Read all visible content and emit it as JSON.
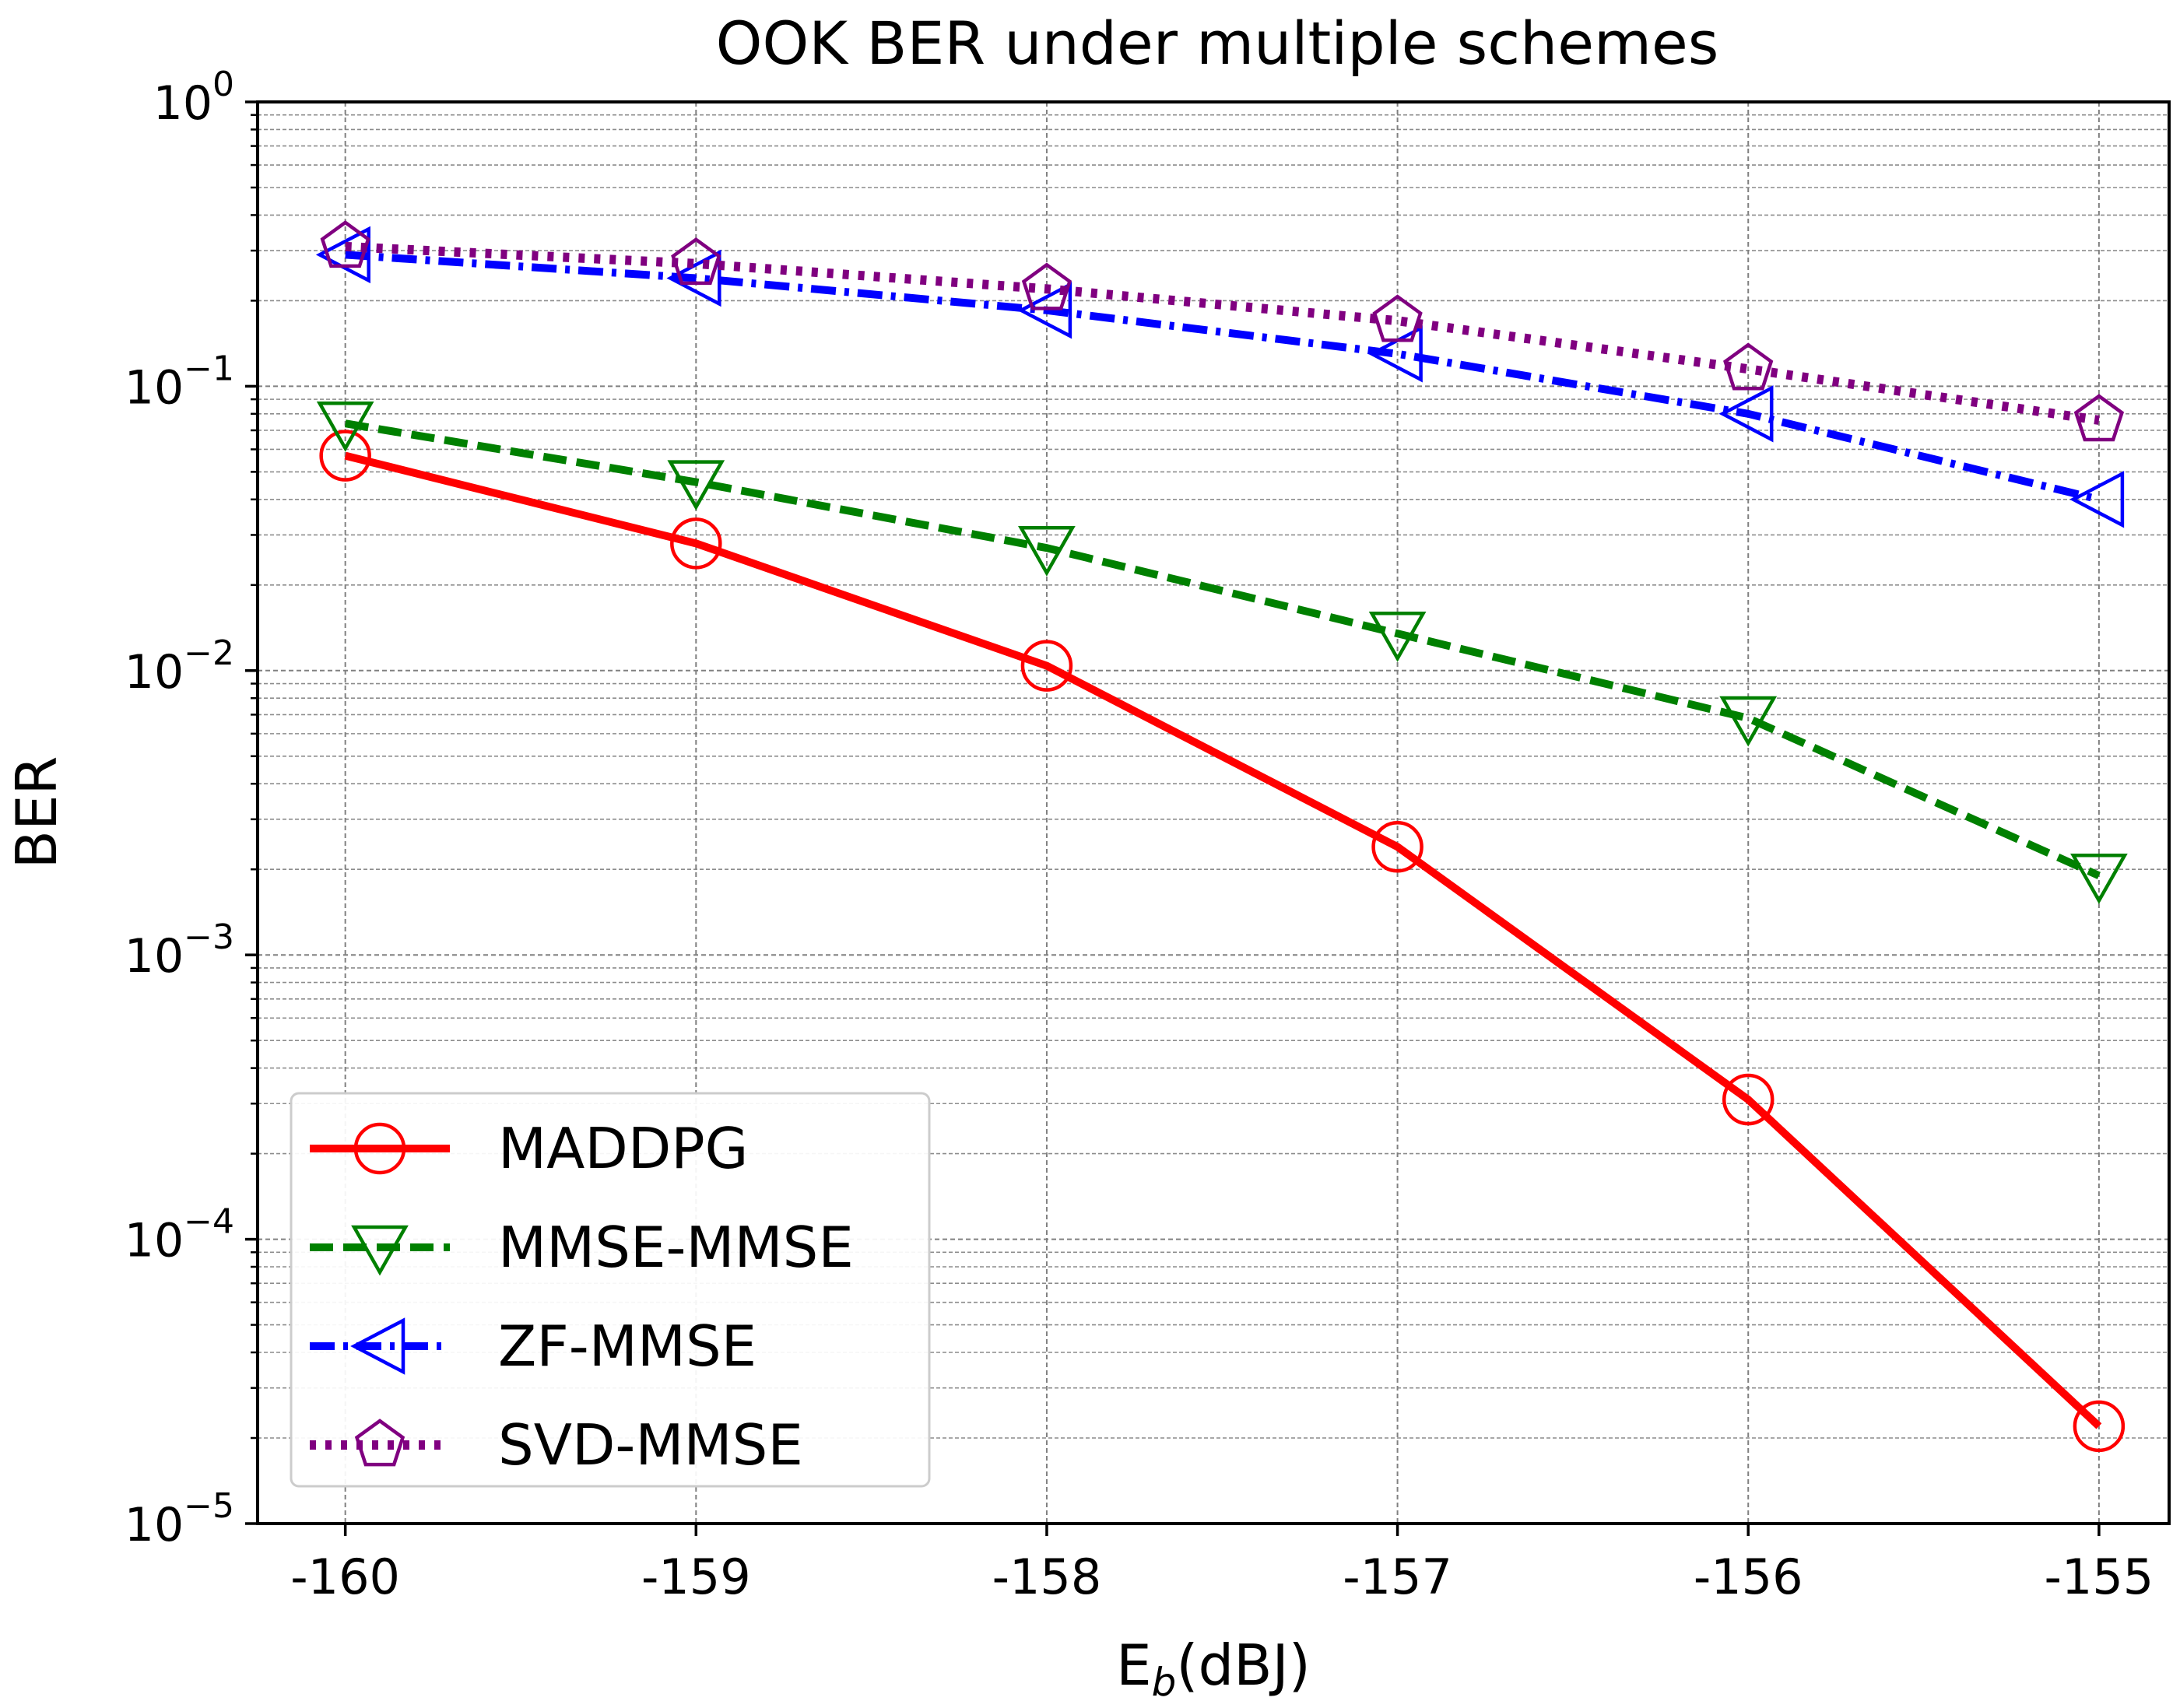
{
  "chart_data": {
    "type": "line",
    "title": "OOK BER under multiple schemes",
    "xlabel_main": "E",
    "xlabel_sub": "b",
    "xlabel_rest": "(dBJ)",
    "ylabel": "BER",
    "yscale": "log",
    "ylim": [
      1e-05,
      1
    ],
    "xlim": [
      -160.25,
      -154.8
    ],
    "grid": true,
    "legend_location": "lower-left",
    "categories": [
      "-160",
      "-159",
      "-158",
      "-157",
      "-156",
      "-155"
    ],
    "x": [
      -160,
      -159,
      -158,
      -157,
      -156,
      -155
    ],
    "y_tick_labels": [
      {
        "base": "10",
        "exp": "−5",
        "value": 1e-05
      },
      {
        "base": "10",
        "exp": "−4",
        "value": 0.0001
      },
      {
        "base": "10",
        "exp": "−3",
        "value": 0.001
      },
      {
        "base": "10",
        "exp": "−2",
        "value": 0.01
      },
      {
        "base": "10",
        "exp": "−1",
        "value": 0.1
      },
      {
        "base": "10",
        "exp": "0",
        "value": 1
      }
    ],
    "series": [
      {
        "name": "MADDPG",
        "color": "#ff0000",
        "dash": "solid",
        "marker": "circle",
        "values": [
          0.057,
          0.028,
          0.0104,
          0.0024,
          0.00031,
          2.2e-05
        ]
      },
      {
        "name": "MMSE-MMSE",
        "color": "#008000",
        "dash": "dashed",
        "marker": "triangle-down",
        "values": [
          0.074,
          0.046,
          0.027,
          0.0135,
          0.0068,
          0.0019
        ]
      },
      {
        "name": "ZF-MMSE",
        "color": "#0000ff",
        "dash": "dashdot",
        "marker": "triangle-left",
        "values": [
          0.29,
          0.24,
          0.185,
          0.13,
          0.08,
          0.04
        ]
      },
      {
        "name": "SVD-MMSE",
        "color": "#800080",
        "dash": "dotted",
        "marker": "pentagon",
        "values": [
          0.31,
          0.27,
          0.22,
          0.17,
          0.115,
          0.076
        ]
      }
    ]
  }
}
